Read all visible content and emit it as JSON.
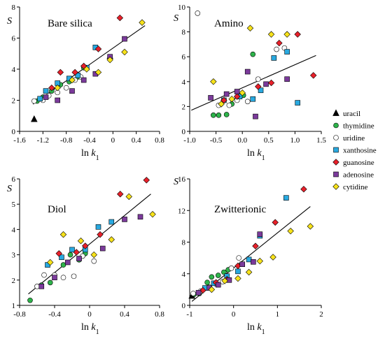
{
  "x_label": "ln k",
  "x_label_subscript": "1",
  "y_label": "S",
  "colors": {
    "uracil": "#000000",
    "thymidine": "#2db34a",
    "uridine": "#ffffff",
    "xanthosine": "#29a9e0",
    "guanosine": "#e8202a",
    "adenosine": "#7b3a9b",
    "cytidine": "#f7e21a"
  },
  "legend": [
    {
      "name": "uracil",
      "marker": "triangle"
    },
    {
      "name": "thymidine",
      "marker": "circle"
    },
    {
      "name": "uridine",
      "marker": "circle-open"
    },
    {
      "name": "xanthosine",
      "marker": "square"
    },
    {
      "name": "guanosine",
      "marker": "diamond"
    },
    {
      "name": "adenosine",
      "marker": "square"
    },
    {
      "name": "cytidine",
      "marker": "diamond"
    }
  ],
  "chart_data": [
    {
      "type": "scatter",
      "title": "Bare silica",
      "xlabel": "ln k1",
      "ylabel": "S",
      "xlim": [
        -1.6,
        0.8
      ],
      "ylim": [
        0,
        8
      ],
      "xticks": [
        -1.6,
        -1.2,
        -0.8,
        -0.4,
        0,
        0.4,
        0.8
      ],
      "xtick_labels": [
        "-1.6",
        "-1.2",
        "-0.8",
        "-0.4",
        "0",
        "0.4",
        "0.8"
      ],
      "yticks": [
        0,
        2,
        4,
        6,
        8
      ],
      "ytick_labels": [
        "0",
        "2",
        "4",
        "6",
        "8"
      ],
      "fit_line": [
        [
          -1.37,
          1.75
        ],
        [
          0.55,
          6.8
        ]
      ],
      "series": [
        {
          "name": "uracil",
          "points": [
            [
              -1.35,
              0.78
            ]
          ]
        },
        {
          "name": "thymidine",
          "points": [
            [
              -1.3,
              1.95
            ],
            [
              -1.2,
              2.2
            ],
            [
              -1.05,
              2.6
            ],
            [
              -0.9,
              3.0
            ],
            [
              -0.75,
              3.2
            ],
            [
              -0.6,
              3.5
            ],
            [
              -0.5,
              4.1
            ]
          ]
        },
        {
          "name": "uridine",
          "points": [
            [
              -1.35,
              1.95
            ],
            [
              -1.2,
              2.0
            ],
            [
              -1.1,
              2.3
            ],
            [
              -0.95,
              2.5
            ],
            [
              -0.8,
              2.8
            ],
            [
              -0.65,
              3.3
            ],
            [
              -0.55,
              3.5
            ]
          ]
        },
        {
          "name": "xanthosine",
          "points": [
            [
              -1.25,
              2.1
            ],
            [
              -1.15,
              2.6
            ],
            [
              -0.95,
              3.1
            ],
            [
              -0.75,
              3.4
            ],
            [
              -0.6,
              3.6
            ],
            [
              -0.45,
              4.1
            ],
            [
              -0.3,
              5.4
            ]
          ]
        },
        {
          "name": "guanosine",
          "points": [
            [
              -1.05,
              2.8
            ],
            [
              -0.9,
              3.8
            ],
            [
              -0.65,
              3.8
            ],
            [
              -0.5,
              4.2
            ],
            [
              -0.25,
              5.3
            ],
            [
              -0.05,
              4.7
            ],
            [
              0.12,
              7.3
            ]
          ]
        },
        {
          "name": "adenosine",
          "points": [
            [
              -1.15,
              2.2
            ],
            [
              -0.95,
              2.0
            ],
            [
              -0.7,
              2.6
            ],
            [
              -0.5,
              3.3
            ],
            [
              -0.3,
              3.7
            ],
            [
              -0.05,
              4.8
            ],
            [
              0.2,
              5.95
            ]
          ]
        },
        {
          "name": "cytidine",
          "points": [
            [
              -0.95,
              2.8
            ],
            [
              -0.7,
              3.3
            ],
            [
              -0.45,
              4.0
            ],
            [
              -0.25,
              3.8
            ],
            [
              -0.05,
              4.6
            ],
            [
              0.2,
              5.1
            ],
            [
              0.5,
              7.0
            ]
          ]
        }
      ]
    },
    {
      "type": "scatter",
      "title": "Amino",
      "xlabel": "ln k1",
      "ylabel": "S",
      "xlim": [
        -1.0,
        1.5
      ],
      "ylim": [
        0,
        10
      ],
      "xticks": [
        -1.0,
        -0.5,
        0,
        0.5,
        1.0,
        1.5
      ],
      "xtick_labels": [
        "-1.0",
        "-0.5",
        "0.0",
        "0.5",
        "1.0",
        "1.5"
      ],
      "yticks": [
        0,
        2,
        4,
        6,
        8,
        10
      ],
      "ytick_labels": [
        "0",
        "2",
        "4",
        "6",
        "8",
        "10"
      ],
      "fit_line": [
        [
          -0.97,
          1.7
        ],
        [
          1.4,
          6.1
        ]
      ],
      "series": [
        {
          "name": "uracil",
          "points": []
        },
        {
          "name": "thymidine",
          "points": [
            [
              -0.55,
              1.3
            ],
            [
              -0.45,
              1.3
            ],
            [
              -0.3,
              1.35
            ],
            [
              -0.2,
              2.2
            ],
            [
              -0.1,
              2.6
            ],
            [
              0.02,
              2.9
            ],
            [
              0.2,
              6.2
            ]
          ]
        },
        {
          "name": "uridine",
          "points": [
            [
              -0.85,
              9.5
            ],
            [
              -0.45,
              2.1
            ],
            [
              -0.25,
              2.1
            ],
            [
              -0.1,
              2.5
            ],
            [
              0.1,
              2.4
            ],
            [
              0.3,
              4.2
            ],
            [
              0.65,
              6.6
            ],
            [
              0.8,
              6.7
            ]
          ]
        },
        {
          "name": "xanthosine",
          "points": [
            [
              -0.35,
              2.5
            ],
            [
              -0.05,
              2.8
            ],
            [
              0.2,
              2.6
            ],
            [
              0.35,
              3.3
            ],
            [
              0.6,
              5.9
            ],
            [
              0.85,
              6.4
            ],
            [
              1.05,
              2.3
            ]
          ]
        },
        {
          "name": "guanosine",
          "points": [
            [
              -0.35,
              2.5
            ],
            [
              -0.1,
              2.8
            ],
            [
              0.3,
              3.6
            ],
            [
              0.55,
              3.9
            ],
            [
              0.7,
              7.1
            ],
            [
              1.05,
              7.8
            ],
            [
              1.35,
              4.5
            ]
          ]
        },
        {
          "name": "adenosine",
          "points": [
            [
              -0.6,
              2.7
            ],
            [
              -0.3,
              3.0
            ],
            [
              -0.1,
              3.2
            ],
            [
              0.1,
              4.8
            ],
            [
              0.25,
              1.2
            ],
            [
              0.45,
              3.8
            ],
            [
              0.85,
              4.2
            ]
          ]
        },
        {
          "name": "cytidine",
          "points": [
            [
              -0.55,
              4.0
            ],
            [
              -0.4,
              2.2
            ],
            [
              -0.2,
              2.6
            ],
            [
              0.0,
              3.1
            ],
            [
              0.15,
              8.3
            ],
            [
              0.55,
              7.8
            ],
            [
              0.85,
              7.8
            ]
          ]
        }
      ]
    },
    {
      "type": "scatter",
      "title": "Diol",
      "xlabel": "ln k1",
      "ylabel": "S",
      "xlim": [
        -0.8,
        0.8
      ],
      "ylim": [
        1,
        6
      ],
      "xticks": [
        -0.8,
        -0.4,
        0,
        0.4,
        0.8
      ],
      "xtick_labels": [
        "-0.8",
        "-0.4",
        "0",
        "0.4",
        "0.8"
      ],
      "yticks": [
        1,
        2,
        3,
        4,
        5,
        6
      ],
      "ytick_labels": [
        "1",
        "2",
        "3",
        "4",
        "5",
        "6"
      ],
      "fit_line": [
        [
          -0.7,
          1.45
        ],
        [
          0.7,
          5.4
        ]
      ],
      "series": [
        {
          "name": "uracil",
          "points": []
        },
        {
          "name": "thymidine",
          "points": [
            [
              -0.68,
              1.2
            ],
            [
              -0.55,
              1.8
            ],
            [
              -0.45,
              1.9
            ],
            [
              -0.3,
              2.6
            ],
            [
              -0.22,
              3.0
            ],
            [
              -0.12,
              2.8
            ],
            [
              -0.05,
              3.05
            ]
          ]
        },
        {
          "name": "uridine",
          "points": [
            [
              -0.6,
              1.75
            ],
            [
              -0.52,
              2.2
            ],
            [
              -0.4,
              2.2
            ],
            [
              -0.3,
              2.1
            ],
            [
              -0.18,
              2.15
            ],
            [
              -0.08,
              2.95
            ],
            [
              0.05,
              2.75
            ]
          ]
        },
        {
          "name": "xanthosine",
          "points": [
            [
              -0.48,
              2.6
            ],
            [
              -0.32,
              2.9
            ],
            [
              -0.2,
              3.2
            ],
            [
              -0.05,
              3.2
            ],
            [
              0.1,
              4.1
            ],
            [
              0.25,
              4.3
            ]
          ]
        },
        {
          "name": "guanosine",
          "points": [
            [
              -0.35,
              3.05
            ],
            [
              -0.15,
              3.1
            ],
            [
              -0.05,
              3.35
            ],
            [
              0.12,
              3.8
            ],
            [
              0.35,
              5.4
            ],
            [
              0.65,
              5.95
            ]
          ]
        },
        {
          "name": "adenosine",
          "points": [
            [
              -0.55,
              1.75
            ],
            [
              -0.4,
              2.1
            ],
            [
              -0.25,
              2.7
            ],
            [
              -0.12,
              2.85
            ],
            [
              0.15,
              3.25
            ],
            [
              0.4,
              4.4
            ],
            [
              0.58,
              4.5
            ]
          ]
        },
        {
          "name": "cytidine",
          "points": [
            [
              -0.45,
              2.7
            ],
            [
              -0.3,
              3.8
            ],
            [
              -0.1,
              3.55
            ],
            [
              0.05,
              3.0
            ],
            [
              0.25,
              3.6
            ],
            [
              0.45,
              5.3
            ],
            [
              0.72,
              4.6
            ]
          ]
        }
      ]
    },
    {
      "type": "scatter",
      "title": "Zwitterionic",
      "xlabel": "ln k1",
      "ylabel": "S",
      "xlim": [
        -1,
        2
      ],
      "ylim": [
        0,
        16
      ],
      "xticks": [
        -1,
        0,
        1,
        2
      ],
      "xtick_labels": [
        "-1",
        "0",
        "1",
        "2"
      ],
      "yticks": [
        0,
        4,
        8,
        12,
        16
      ],
      "ytick_labels": [
        "0",
        "4",
        "8",
        "12",
        "16"
      ],
      "fit_line": [
        [
          -0.95,
          0.5
        ],
        [
          1.75,
          12.5
        ]
      ],
      "series": [
        {
          "name": "uracil",
          "points": [
            [
              -0.95,
              1.2
            ]
          ]
        },
        {
          "name": "thymidine",
          "points": [
            [
              -0.9,
              1.4
            ],
            [
              -0.78,
              1.5
            ],
            [
              -0.6,
              2.9
            ],
            [
              -0.5,
              3.6
            ],
            [
              -0.35,
              3.8
            ],
            [
              -0.22,
              4.2
            ],
            [
              -0.12,
              4.5
            ]
          ]
        },
        {
          "name": "uridine",
          "points": [
            [
              -0.92,
              1.5
            ],
            [
              -0.75,
              1.8
            ],
            [
              -0.55,
              2.3
            ],
            [
              -0.4,
              2.7
            ],
            [
              -0.25,
              3.0
            ],
            [
              -0.05,
              4.7
            ],
            [
              0.12,
              6.0
            ]
          ]
        },
        {
          "name": "xanthosine",
          "points": [
            [
              -0.65,
              2.2
            ],
            [
              -0.45,
              2.8
            ],
            [
              -0.15,
              3.7
            ],
            [
              0.1,
              4.3
            ],
            [
              0.35,
              5.8
            ],
            [
              0.6,
              8.8
            ],
            [
              1.2,
              13.6
            ]
          ]
        },
        {
          "name": "guanosine",
          "points": [
            [
              -0.7,
              1.9
            ],
            [
              -0.4,
              2.9
            ],
            [
              -0.15,
              3.3
            ],
            [
              0.1,
              5.0
            ],
            [
              0.5,
              7.5
            ],
            [
              0.95,
              10.5
            ],
            [
              1.6,
              14.7
            ]
          ]
        },
        {
          "name": "adenosine",
          "points": [
            [
              -0.8,
              1.6
            ],
            [
              -0.55,
              2.2
            ],
            [
              -0.35,
              2.6
            ],
            [
              -0.1,
              3.2
            ],
            [
              0.2,
              5.2
            ],
            [
              0.45,
              5.5
            ],
            [
              0.6,
              9.0
            ]
          ]
        },
        {
          "name": "cytidine",
          "points": [
            [
              -0.5,
              2.0
            ],
            [
              -0.2,
              3.1
            ],
            [
              0.1,
              3.4
            ],
            [
              0.35,
              4.2
            ],
            [
              0.6,
              5.6
            ],
            [
              0.9,
              6.1
            ],
            [
              1.3,
              9.4
            ],
            [
              1.75,
              10.0
            ]
          ]
        }
      ]
    }
  ]
}
